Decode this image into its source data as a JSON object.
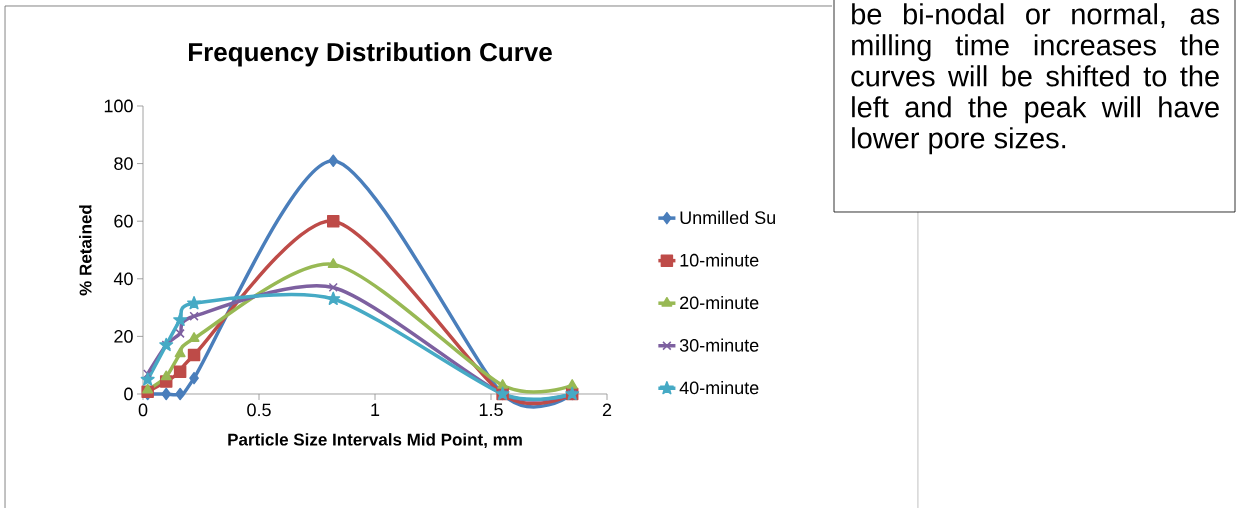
{
  "chart_data": {
    "type": "line",
    "title": "Frequency Distribution Curve",
    "xlabel": "Particle Size Intervals Mid Point, mm",
    "ylabel": "% Retained",
    "annotations": [
      "be bi-nodal or normal, as milling time increases the curves will be shifted to the left and the peak will have lower pore sizes."
    ],
    "x": [
      0.02,
      0.1,
      0.16,
      0.22,
      0.82,
      1.55,
      1.85
    ],
    "series": [
      {
        "name": "Unmilled Su",
        "color": "#4a7ebb",
        "marker": "diamond",
        "values": [
          0,
          0,
          0,
          5.5,
          81,
          0,
          0
        ]
      },
      {
        "name": "10-minute",
        "color": "#be4b48",
        "marker": "square",
        "values": [
          0.8,
          4.3,
          7.7,
          13.5,
          60,
          0,
          0
        ]
      },
      {
        "name": "20-minute",
        "color": "#98b954",
        "marker": "triangle",
        "values": [
          1.4,
          6,
          14,
          19.3,
          45,
          3,
          3
        ]
      },
      {
        "name": "30-minute",
        "color": "#7d60a0",
        "marker": "cross",
        "values": [
          7,
          17,
          21,
          27,
          37,
          0,
          0
        ]
      },
      {
        "name": "40-minute",
        "color": "#46aac5",
        "marker": "star",
        "values": [
          5,
          17,
          25.7,
          31.5,
          33,
          0,
          0
        ]
      }
    ],
    "xlim": [
      0,
      2
    ],
    "ylim": [
      0,
      100
    ],
    "xticks": [
      0,
      0.5,
      1,
      1.5,
      2
    ],
    "yticks": [
      0,
      20,
      40,
      60,
      80,
      100
    ],
    "legend": "right",
    "grid": false
  }
}
